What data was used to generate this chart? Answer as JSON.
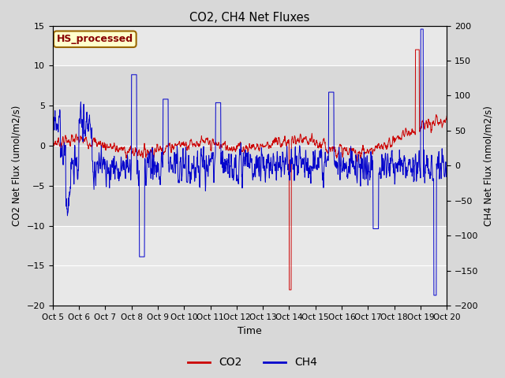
{
  "title": "CO2, CH4 Net Fluxes",
  "xlabel": "Time",
  "ylabel_left": "CO2 Net Flux (umol/m2/s)",
  "ylabel_right": "CH4 Net Flux (nmol/m2/s)",
  "ylim_left": [
    -20,
    15
  ],
  "ylim_right": [
    -200,
    200
  ],
  "yticks_left": [
    -20,
    -15,
    -10,
    -5,
    0,
    5,
    10,
    15
  ],
  "yticks_right": [
    -200,
    -150,
    -100,
    -50,
    0,
    50,
    100,
    150,
    200
  ],
  "x_tick_labels": [
    "Oct 5",
    "Oct 6",
    "Oct 7",
    "Oct 8",
    "Oct 9",
    "Oct 10",
    "Oct 11",
    "Oct 12",
    "Oct 13",
    "Oct 14",
    "Oct 15",
    "Oct 16",
    "Oct 17",
    "Oct 18",
    "Oct 19",
    "Oct 20"
  ],
  "co2_color": "#cc0000",
  "ch4_color": "#0000cc",
  "legend_label_co2": "CO2",
  "legend_label_ch4": "CH4",
  "annotation_text": "HS_processed",
  "annotation_bg": "#ffffcc",
  "annotation_border": "#996600",
  "outer_bg": "#d8d8d8",
  "inner_bg": "#e8e8e8",
  "band_color": "#c8c8c8",
  "n_points": 1500,
  "seed": 7,
  "figwidth": 6.4,
  "figheight": 4.8,
  "dpi": 100
}
